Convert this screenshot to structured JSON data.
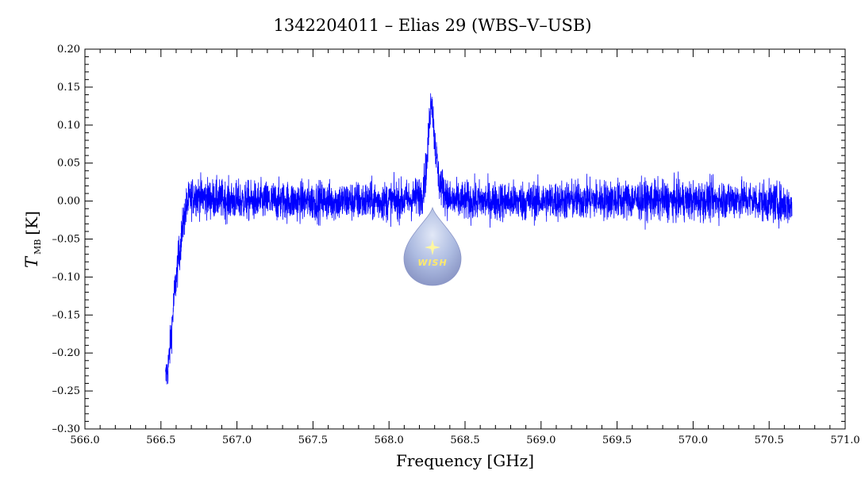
{
  "chart_data": {
    "type": "line",
    "title": "1342204011 – Elias 29 (WBS–V–USB)",
    "xlabel": "Frequency [GHz]",
    "ylabel": {
      "main": "T",
      "sub": "MB",
      "unit": "[K]"
    },
    "xlim": [
      566.0,
      571.0
    ],
    "ylim": [
      -0.3,
      0.2
    ],
    "xticks": [
      "566.0",
      "566.5",
      "567.0",
      "567.5",
      "568.0",
      "568.5",
      "569.0",
      "569.5",
      "570.0",
      "570.5",
      "571.0"
    ],
    "yticks": [
      "0.20",
      "0.15",
      "0.10",
      "0.05",
      "0.00",
      "–0.05",
      "–0.10",
      "–0.15",
      "–0.20",
      "–0.25",
      "–0.30"
    ],
    "grid": false,
    "series": [
      {
        "color": "#0000ff",
        "x": [
          566.53,
          566.55,
          566.57,
          566.59,
          566.61,
          566.63,
          566.65,
          566.67,
          566.7,
          566.73,
          566.76,
          566.8,
          567.0,
          567.5,
          568.0,
          568.15,
          568.22,
          568.25,
          568.27,
          568.28,
          568.3,
          568.33,
          568.4,
          568.6,
          569.0,
          569.32,
          569.5,
          570.0,
          570.3,
          570.65
        ],
        "y": [
          -0.235,
          -0.215,
          -0.17,
          -0.12,
          -0.085,
          -0.055,
          -0.025,
          -0.005,
          0.005,
          0.008,
          0.006,
          0.004,
          0.0,
          0.0,
          0.0,
          0.002,
          0.01,
          0.05,
          0.12,
          0.14,
          0.08,
          0.025,
          0.0,
          0.0,
          0.0,
          0.002,
          0.002,
          0.0,
          0.003,
          -0.005
        ],
        "noise_rms": 0.013
      }
    ]
  },
  "logo": {
    "text": "WISH",
    "name": "wish-logo"
  }
}
